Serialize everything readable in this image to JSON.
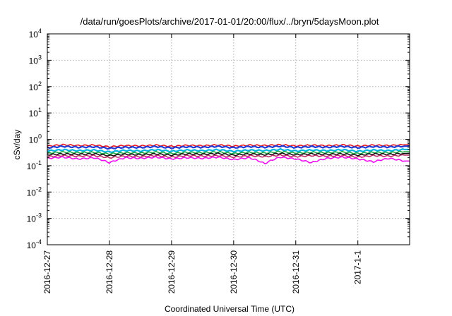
{
  "chart_data": {
    "type": "line",
    "title": "/data/run/goesPlots/archive/2017-01-01/20:00/flux/../bryn/5daysMoon.plot",
    "xlabel": "Coordinated Universal Time (UTC)",
    "ylabel": "cSv/day",
    "yscale": "log",
    "ylim": [
      0.0001,
      10000
    ],
    "xlim": [
      "2016-12-27",
      "2017-01-01 20:00"
    ],
    "grid": true,
    "legend": "none",
    "y_ticks": [
      {
        "base": "10",
        "exp": "-4",
        "value": 0.0001
      },
      {
        "base": "10",
        "exp": "-3",
        "value": 0.001
      },
      {
        "base": "10",
        "exp": "-2",
        "value": 0.01
      },
      {
        "base": "10",
        "exp": "-1",
        "value": 0.1
      },
      {
        "base": "10",
        "exp": "0",
        "value": 1
      },
      {
        "base": "10",
        "exp": "1",
        "value": 10
      },
      {
        "base": "10",
        "exp": "2",
        "value": 100
      },
      {
        "base": "10",
        "exp": "3",
        "value": 1000
      },
      {
        "base": "10",
        "exp": "4",
        "value": 10000
      }
    ],
    "x_ticks": [
      {
        "label": "2016-12-27",
        "value": "2016-12-27"
      },
      {
        "label": "2016-12-28",
        "value": "2016-12-28"
      },
      {
        "label": "2016-12-29",
        "value": "2016-12-29"
      },
      {
        "label": "2016-12-30",
        "value": "2016-12-30"
      },
      {
        "label": "2016-12-31",
        "value": "2016-12-31"
      },
      {
        "label": "2017-1-1",
        "value": "2017-01-01"
      }
    ],
    "x": [
      "2016-12-27 00:00",
      "2016-12-27 06:00",
      "2016-12-27 12:00",
      "2016-12-27 18:00",
      "2016-12-28 00:00",
      "2016-12-28 06:00",
      "2016-12-28 12:00",
      "2016-12-28 18:00",
      "2016-12-29 00:00",
      "2016-12-29 06:00",
      "2016-12-29 12:00",
      "2016-12-29 18:00",
      "2016-12-30 00:00",
      "2016-12-30 06:00",
      "2016-12-30 12:00",
      "2016-12-30 18:00",
      "2016-12-31 00:00",
      "2016-12-31 06:00",
      "2016-12-31 12:00",
      "2016-12-31 18:00",
      "2017-01-01 00:00",
      "2017-01-01 06:00",
      "2017-01-01 12:00",
      "2017-01-01 18:00"
    ],
    "series": [
      {
        "color": "#e8141c",
        "values": [
          0.55,
          0.62,
          0.58,
          0.6,
          0.52,
          0.58,
          0.56,
          0.6,
          0.54,
          0.59,
          0.57,
          0.61,
          0.55,
          0.6,
          0.58,
          0.62,
          0.56,
          0.6,
          0.57,
          0.61,
          0.55,
          0.6,
          0.58,
          0.62
        ]
      },
      {
        "color": "#1f3ad6",
        "values": [
          0.48,
          0.54,
          0.5,
          0.52,
          0.45,
          0.5,
          0.49,
          0.53,
          0.47,
          0.52,
          0.5,
          0.54,
          0.48,
          0.53,
          0.5,
          0.55,
          0.49,
          0.53,
          0.5,
          0.54,
          0.48,
          0.53,
          0.51,
          0.55
        ]
      },
      {
        "color": "#00b4e0",
        "values": [
          0.36,
          0.4,
          0.37,
          0.39,
          0.33,
          0.38,
          0.36,
          0.4,
          0.35,
          0.39,
          0.37,
          0.4,
          0.35,
          0.39,
          0.37,
          0.41,
          0.36,
          0.39,
          0.37,
          0.4,
          0.35,
          0.39,
          0.37,
          0.41
        ]
      },
      {
        "color": "#22aa44",
        "values": [
          0.3,
          0.33,
          0.31,
          0.32,
          0.28,
          0.31,
          0.3,
          0.33,
          0.29,
          0.32,
          0.31,
          0.33,
          0.29,
          0.32,
          0.3,
          0.34,
          0.3,
          0.32,
          0.31,
          0.33,
          0.29,
          0.32,
          0.31,
          0.34
        ]
      },
      {
        "color": "#111111",
        "values": [
          0.26,
          0.28,
          0.27,
          0.28,
          0.24,
          0.27,
          0.26,
          0.28,
          0.25,
          0.28,
          0.27,
          0.29,
          0.25,
          0.28,
          0.26,
          0.29,
          0.26,
          0.28,
          0.27,
          0.28,
          0.25,
          0.28,
          0.27,
          0.29
        ]
      },
      {
        "color": "#c0306a",
        "values": [
          0.22,
          0.24,
          0.23,
          0.24,
          0.2,
          0.23,
          0.22,
          0.24,
          0.21,
          0.24,
          0.23,
          0.24,
          0.21,
          0.24,
          0.22,
          0.25,
          0.22,
          0.24,
          0.23,
          0.24,
          0.21,
          0.24,
          0.23,
          0.25
        ]
      },
      {
        "color": "#ee10ee",
        "values": [
          0.19,
          0.21,
          0.18,
          0.2,
          0.13,
          0.2,
          0.19,
          0.21,
          0.18,
          0.2,
          0.19,
          0.21,
          0.17,
          0.2,
          0.12,
          0.21,
          0.18,
          0.13,
          0.19,
          0.21,
          0.18,
          0.14,
          0.19,
          0.15
        ]
      }
    ]
  }
}
